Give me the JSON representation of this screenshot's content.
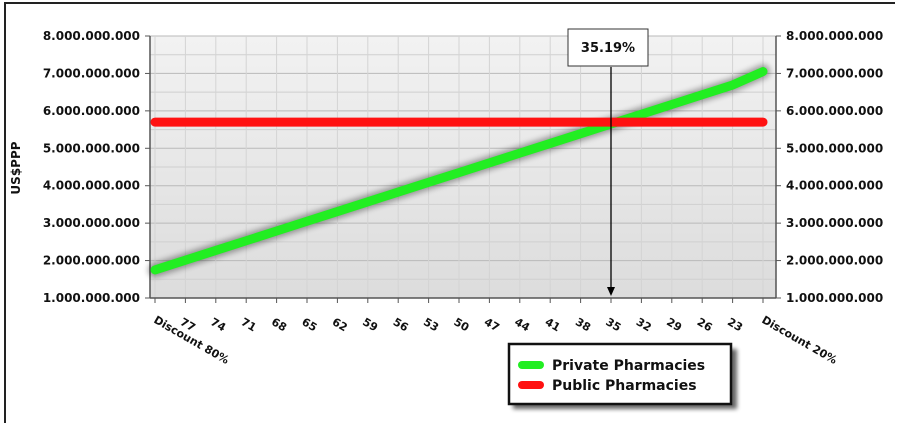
{
  "chart_data": {
    "type": "line",
    "ylabel": "US$PPP",
    "ylim": [
      1000000000,
      8000000000
    ],
    "y_ticks": [
      1000000000,
      2000000000,
      3000000000,
      4000000000,
      5000000000,
      6000000000,
      7000000000,
      8000000000
    ],
    "y_tick_labels": [
      "1.000.000.000",
      "2.000.000.000",
      "3.000.000.000",
      "4.000.000.000",
      "5.000.000.000",
      "6.000.000.000",
      "7.000.000.000",
      "8.000.000.000"
    ],
    "categories": [
      "Discount 80%",
      "77",
      "74",
      "71",
      "68",
      "65",
      "62",
      "59",
      "56",
      "53",
      "50",
      "47",
      "44",
      "41",
      "38",
      "35",
      "32",
      "29",
      "26",
      "23",
      "Discount 20%"
    ],
    "series": [
      {
        "name": "Private Pharmacies",
        "color": "#22ee22",
        "values": [
          1750000000,
          2010000000,
          2270000000,
          2530000000,
          2790000000,
          3050000000,
          3310000000,
          3570000000,
          3830000000,
          4090000000,
          4350000000,
          4610000000,
          4870000000,
          5130000000,
          5390000000,
          5650000000,
          5910000000,
          6170000000,
          6430000000,
          6690000000,
          7050000000
        ]
      },
      {
        "name": "Public Pharmacies",
        "color": "#ff1111",
        "values": [
          5700000000,
          5700000000,
          5700000000,
          5700000000,
          5700000000,
          5700000000,
          5700000000,
          5700000000,
          5700000000,
          5700000000,
          5700000000,
          5700000000,
          5700000000,
          5700000000,
          5700000000,
          5700000000,
          5700000000,
          5700000000,
          5700000000,
          5700000000,
          5700000000
        ]
      }
    ],
    "annotation": {
      "text": "35.19%",
      "x": 35.19
    },
    "grid": true,
    "legend_position": "bottom-right"
  }
}
